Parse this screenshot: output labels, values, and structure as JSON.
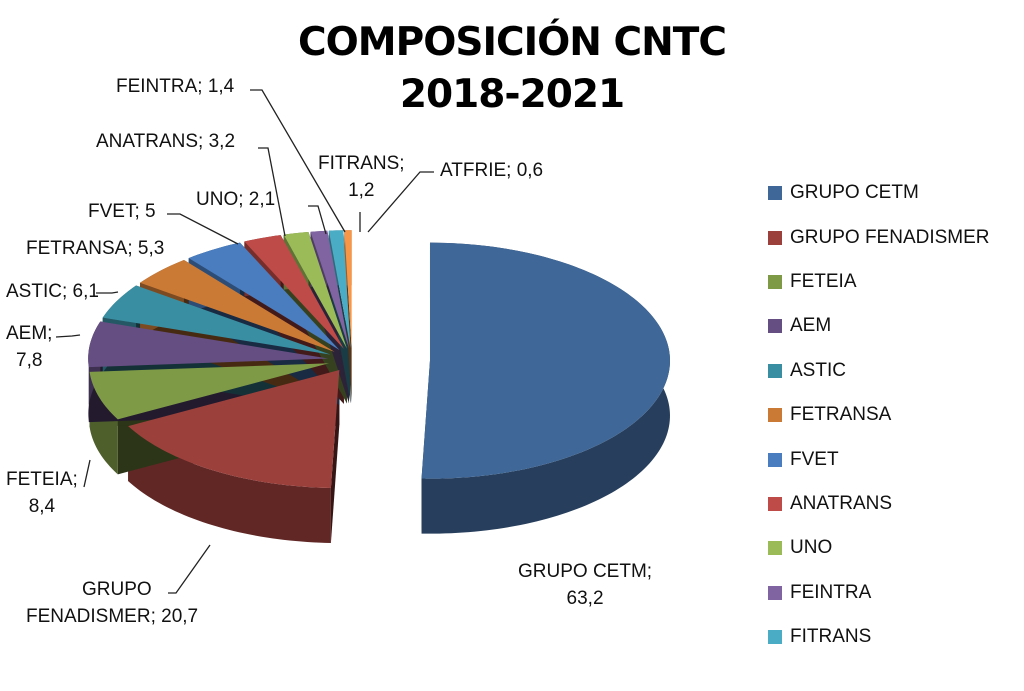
{
  "chart_data": {
    "type": "pie",
    "subtype": "3d-exploded",
    "title_lines": [
      "COMPOSICIÓN CNTC",
      "2018-2021"
    ],
    "categories": [
      "GRUPO CETM",
      "GRUPO FENADISMER",
      "FETEIA",
      "AEM",
      "ASTIC",
      "FETRANSA",
      "FVET",
      "ANATRANS",
      "UNO",
      "FEINTRA",
      "FITRANS",
      "ATFRIE"
    ],
    "values": [
      63.2,
      20.7,
      8.4,
      7.8,
      6.1,
      5.3,
      5,
      3.2,
      2.1,
      1.4,
      1.2,
      0.6
    ],
    "value_labels": [
      "63,2",
      "20,7",
      "8,4",
      "7,8",
      "6,1",
      "5,3",
      "5",
      "3,2",
      "2,1",
      "1,4",
      "1,2",
      "0,6"
    ],
    "colors": [
      "#3F6797",
      "#9C403C",
      "#7E9A47",
      "#654E82",
      "#3A8EA2",
      "#CB7A36",
      "#4A7DBF",
      "#BF4B48",
      "#9BBB59",
      "#8064A2",
      "#4BACC6",
      "#F79646"
    ],
    "legend_entries": [
      "GRUPO CETM",
      "GRUPO FENADISMER",
      "FETEIA",
      "AEM",
      "ASTIC",
      "FETRANSA",
      "FVET",
      "ANATRANS",
      "UNO",
      "FEINTRA",
      "FITRANS"
    ],
    "legend_position": "right"
  }
}
